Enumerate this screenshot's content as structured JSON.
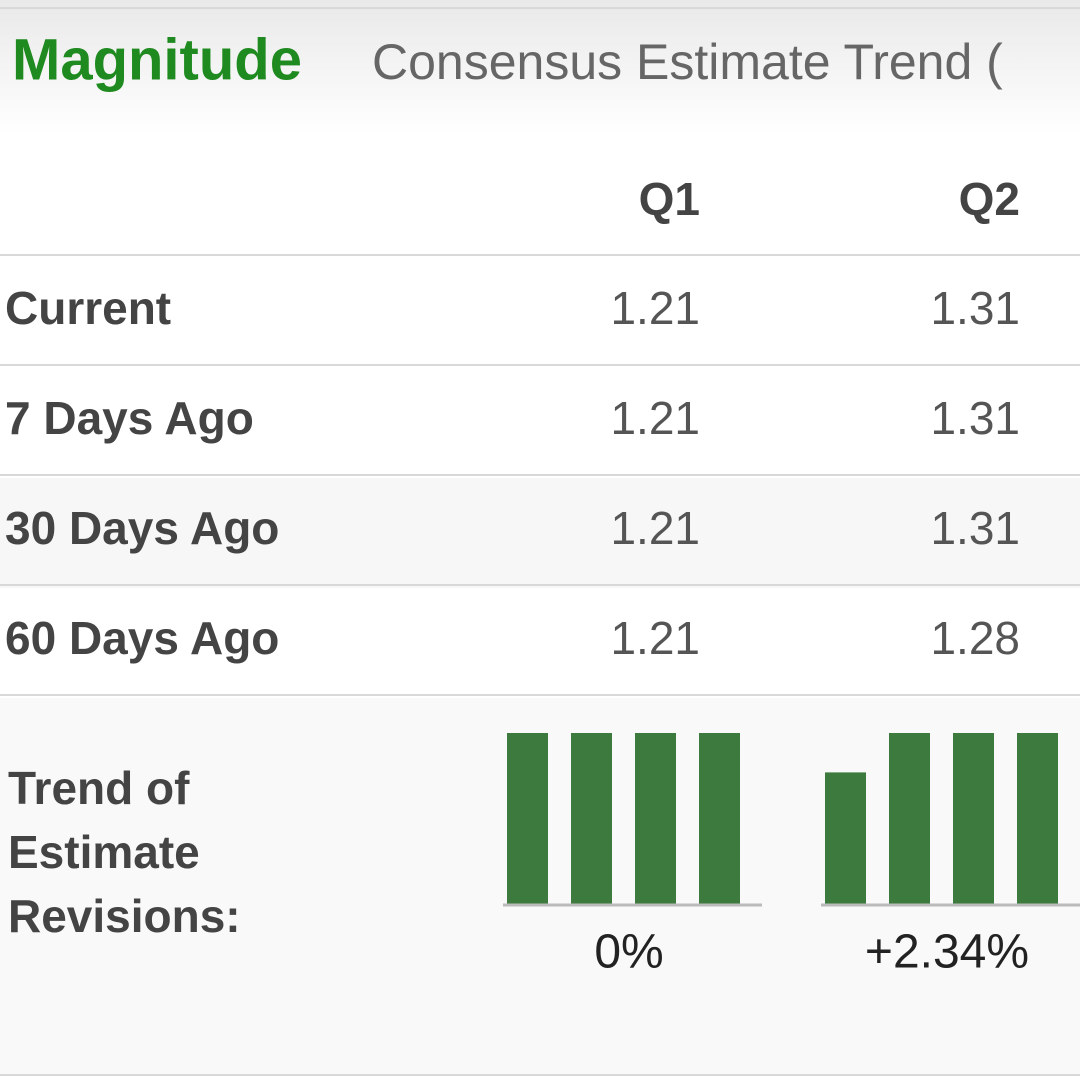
{
  "header": {
    "title": "Magnitude",
    "subtitle": "Consensus Estimate Trend ("
  },
  "table": {
    "columns": [
      "Q1",
      "Q2"
    ],
    "rows": [
      {
        "label": "Current",
        "values": [
          1.21,
          1.31
        ]
      },
      {
        "label": "7 Days Ago",
        "values": [
          1.21,
          1.31
        ]
      },
      {
        "label": "30 Days Ago",
        "values": [
          1.21,
          1.31
        ]
      },
      {
        "label": "60 Days Ago",
        "values": [
          1.21,
          1.28
        ]
      }
    ],
    "trend": {
      "label_lines": [
        "Trend of",
        "Estimate",
        "Revisions:"
      ],
      "changes": [
        "0%",
        "+2.34%"
      ],
      "color": "#3d7a3d"
    }
  }
}
